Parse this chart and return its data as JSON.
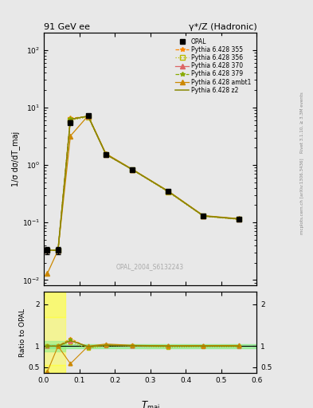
{
  "title_left": "91 GeV ee",
  "title_right": "γ*/Z (Hadronic)",
  "ylabel_main": "1/σ dσ/dT_maj",
  "ylabel_ratio": "Ratio to OPAL",
  "xlabel": "T_maj",
  "right_label_top": "Rivet 3.1.10, ≥ 3.3M events",
  "right_label_bottom": "mcplots.cern.ch [arXiv:1306.3436]",
  "watermark": "OPAL_2004_S6132243",
  "x_data": [
    0.01,
    0.04,
    0.075,
    0.125,
    0.175,
    0.25,
    0.35,
    0.45,
    0.55
  ],
  "opal_y": [
    0.033,
    0.033,
    5.5,
    7.2,
    1.5,
    0.82,
    0.35,
    0.13,
    0.115
  ],
  "pythia355_y": [
    0.033,
    0.033,
    6.5,
    7.0,
    1.55,
    0.83,
    0.35,
    0.13,
    0.115
  ],
  "pythia356_y": [
    0.033,
    0.033,
    6.0,
    6.8,
    1.52,
    0.82,
    0.34,
    0.128,
    0.113
  ],
  "pythia370_y": [
    0.033,
    0.033,
    6.2,
    7.1,
    1.53,
    0.83,
    0.35,
    0.13,
    0.115
  ],
  "pythia379_y": [
    0.033,
    0.033,
    6.3,
    7.0,
    1.55,
    0.83,
    0.35,
    0.13,
    0.115
  ],
  "pythia_ambt1_y": [
    0.013,
    0.033,
    3.2,
    7.2,
    1.58,
    0.84,
    0.355,
    0.132,
    0.117
  ],
  "pythia_z2_y": [
    0.033,
    0.033,
    6.2,
    7.1,
    1.53,
    0.83,
    0.35,
    0.13,
    0.115
  ],
  "ratio355": [
    1.0,
    1.0,
    1.18,
    0.97,
    1.03,
    1.01,
    1.0,
    1.0,
    1.0
  ],
  "ratio356": [
    1.0,
    1.0,
    1.09,
    0.94,
    1.01,
    1.0,
    0.97,
    0.985,
    0.983
  ],
  "ratio370": [
    1.0,
    1.0,
    1.13,
    0.99,
    1.02,
    1.01,
    1.0,
    1.0,
    1.0
  ],
  "ratio379": [
    1.0,
    1.0,
    1.15,
    0.97,
    1.03,
    1.01,
    1.0,
    1.0,
    1.0
  ],
  "ratio_ambt1": [
    0.39,
    1.0,
    0.58,
    1.0,
    1.05,
    1.02,
    1.01,
    1.015,
    1.017
  ],
  "ratio_z2": [
    1.0,
    1.0,
    1.13,
    0.99,
    1.02,
    1.01,
    1.0,
    1.0,
    1.0
  ],
  "opal_err_lo": [
    0.005,
    0.005,
    0.4,
    0.4,
    0.06,
    0.03,
    0.015,
    0.006,
    0.005
  ],
  "opal_err_hi": [
    0.005,
    0.005,
    0.4,
    0.4,
    0.06,
    0.03,
    0.015,
    0.006,
    0.005
  ],
  "color_opal": "#000000",
  "color_355": "#ff8800",
  "color_356": "#bbbb00",
  "color_370": "#dd6666",
  "color_379": "#88aa00",
  "color_ambt1": "#cc8800",
  "color_z2": "#888800",
  "bg_color": "#e8e8e8",
  "band_yellow": "#ffff44",
  "band_green": "#88ee88",
  "xlim": [
    0.0,
    0.6
  ],
  "ylim_main": [
    0.008,
    200
  ],
  "ylim_ratio": [
    0.35,
    2.3
  ],
  "xticks": [
    0.0,
    0.1,
    0.2,
    0.3,
    0.4,
    0.5,
    0.6
  ],
  "ratio_yticks": [
    0.5,
    1.0,
    2.0
  ],
  "ratio_yticklabels": [
    "0.5",
    "1",
    "2"
  ]
}
